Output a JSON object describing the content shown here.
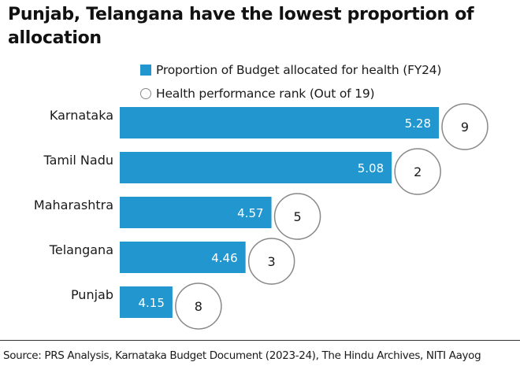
{
  "title": "Punjab, Telangana have the lowest proportion of allocation",
  "legend": {
    "bar_label": "Proportion of Budget allocated for health (FY24)",
    "circle_label": "Health performance rank (Out of 19)"
  },
  "colors": {
    "bar": "#2196cf",
    "circle_border": "#888888",
    "text": "#1a1a1a"
  },
  "chart_data": {
    "type": "bar",
    "orientation": "horizontal",
    "title": "Punjab, Telangana have the lowest proportion of allocation",
    "categories": [
      "Karnataka",
      "Tamil Nadu",
      "Maharashtra",
      "Telangana",
      "Punjab"
    ],
    "series": [
      {
        "name": "Proportion of Budget allocated for health (FY24)",
        "values": [
          5.28,
          5.08,
          4.57,
          4.46,
          4.15
        ]
      },
      {
        "name": "Health performance rank (Out of 19)",
        "values": [
          9,
          2,
          5,
          3,
          8
        ]
      }
    ],
    "grid": false,
    "legend_position": "top"
  },
  "source": "Source: PRS Analysis, Karnataka Budget Document (2023-24), The Hindu Archives, NITI Aayog"
}
